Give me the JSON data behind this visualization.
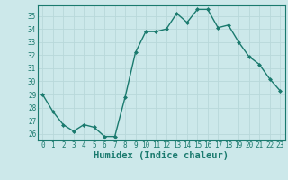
{
  "x": [
    0,
    1,
    2,
    3,
    4,
    5,
    6,
    7,
    8,
    9,
    10,
    11,
    12,
    13,
    14,
    15,
    16,
    17,
    18,
    19,
    20,
    21,
    22,
    23
  ],
  "y": [
    29,
    27.7,
    26.7,
    26.2,
    26.7,
    26.5,
    25.8,
    25.8,
    28.8,
    32.2,
    33.8,
    33.8,
    34.0,
    35.2,
    34.5,
    35.5,
    35.5,
    34.1,
    34.3,
    33.0,
    31.9,
    31.3,
    30.2,
    29.3
  ],
  "line_color": "#1a7a6e",
  "bg_color": "#cce8ea",
  "grid_color": "#b8d8da",
  "xlabel": "Humidex (Indice chaleur)",
  "ylim": [
    25.5,
    35.8
  ],
  "yticks": [
    26,
    27,
    28,
    29,
    30,
    31,
    32,
    33,
    34,
    35
  ],
  "xticks": [
    0,
    1,
    2,
    3,
    4,
    5,
    6,
    7,
    8,
    9,
    10,
    11,
    12,
    13,
    14,
    15,
    16,
    17,
    18,
    19,
    20,
    21,
    22,
    23
  ],
  "tick_fontsize": 5.5,
  "xlabel_fontsize": 7.5,
  "marker": "D",
  "markersize": 2.0,
  "linewidth": 1.0
}
